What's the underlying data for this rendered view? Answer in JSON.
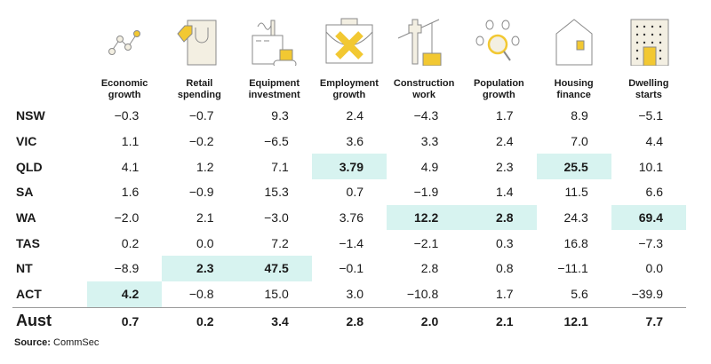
{
  "colors": {
    "highlight": "#d7f3f0",
    "icon_accent": "#f2c832",
    "icon_fill": "#f3efe2",
    "icon_stroke": "#8a8a8a"
  },
  "icons": [
    "line-chart-icon",
    "shopping-bag-icon",
    "factory-icon",
    "briefcase-icon",
    "crane-icon",
    "population-search-icon",
    "house-icon",
    "apartment-building-icon"
  ],
  "chart_data": {
    "type": "table",
    "columns": [
      "Economic growth",
      "Retail spending",
      "Equipment investment",
      "Employment growth",
      "Construction work",
      "Population growth",
      "Housing finance",
      "Dwelling starts"
    ],
    "rows": [
      {
        "label": "NSW",
        "values": [
          "-0.3",
          "-0.7",
          "9.3",
          "2.4",
          "-4.3",
          "1.7",
          "8.9",
          "-5.1"
        ],
        "highlight": []
      },
      {
        "label": "VIC",
        "values": [
          "1.1",
          "-0.2",
          "-6.5",
          "3.6",
          "3.3",
          "2.4",
          "7.0",
          "4.4"
        ],
        "highlight": []
      },
      {
        "label": "QLD",
        "values": [
          "4.1",
          "1.2",
          "7.1",
          "3.79",
          "4.9",
          "2.3",
          "25.5",
          "10.1"
        ],
        "highlight": [
          3,
          6
        ]
      },
      {
        "label": "SA",
        "values": [
          "1.6",
          "-0.9",
          "15.3",
          "0.7",
          "-1.9",
          "1.4",
          "11.5",
          "6.6"
        ],
        "highlight": []
      },
      {
        "label": "WA",
        "values": [
          "-2.0",
          "2.1",
          "-3.0",
          "3.76",
          "12.2",
          "2.8",
          "24.3",
          "69.4"
        ],
        "highlight": [
          4,
          5,
          7
        ]
      },
      {
        "label": "TAS",
        "values": [
          "0.2",
          "0.0",
          "7.2",
          "-1.4",
          "-2.1",
          "0.3",
          "16.8",
          "-7.3"
        ],
        "highlight": []
      },
      {
        "label": "NT",
        "values": [
          "-8.9",
          "2.3",
          "47.5",
          "-0.1",
          "2.8",
          "0.8",
          "-11.1",
          "0.0"
        ],
        "highlight": [
          1,
          2
        ]
      },
      {
        "label": "ACT",
        "values": [
          "4.2",
          "-0.8",
          "15.0",
          "3.0",
          "-10.8",
          "1.7",
          "5.6",
          "-39.9"
        ],
        "highlight": [
          0
        ]
      }
    ],
    "total": {
      "label": "Aust",
      "values": [
        "0.7",
        "0.2",
        "3.4",
        "2.8",
        "2.0",
        "2.1",
        "12.1",
        "7.7"
      ]
    }
  },
  "source": {
    "label": "Source:",
    "value": "CommSec"
  }
}
